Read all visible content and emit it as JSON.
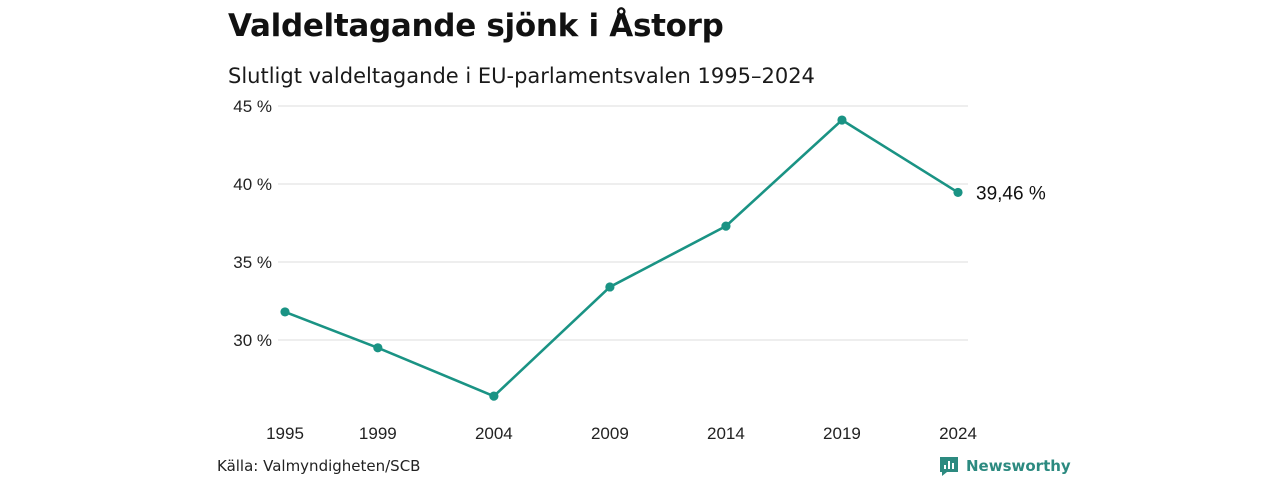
{
  "header": {
    "title": "Valdeltagande sjönk i Åstorp",
    "subtitle": "Slutligt valdeltagande i EU-parlamentsvalen 1995–2024"
  },
  "footer": {
    "source": "Källa: Valmyndigheten/SCB",
    "brand": "Newsworthy"
  },
  "colors": {
    "line": "#1a9384",
    "grid": "#dedede",
    "brand": "#2c8a80"
  },
  "icons": {
    "brand_logo": "newsworthy-logo-icon"
  },
  "chart_data": {
    "type": "line",
    "title": "Valdeltagande sjönk i Åstorp",
    "subtitle": "Slutligt valdeltagande i EU-parlamentsvalen 1995–2024",
    "xlabel": "",
    "ylabel": "",
    "categories": [
      "1995",
      "1999",
      "2004",
      "2009",
      "2014",
      "2019",
      "2024"
    ],
    "x_tick_labels": [
      "1995",
      "1999",
      "2004",
      "2009",
      "2014",
      "2019",
      "2024"
    ],
    "series": [
      {
        "values": [
          31.8,
          29.5,
          26.4,
          33.4,
          37.3,
          44.1,
          39.46
        ]
      }
    ],
    "ylim": [
      25,
      45
    ],
    "y_ticks": [
      30,
      35,
      40,
      45
    ],
    "y_tick_labels": [
      "30 %",
      "35 %",
      "40 %",
      "45 %"
    ],
    "end_label": "39,46 %",
    "grid": true,
    "legend": "none"
  }
}
